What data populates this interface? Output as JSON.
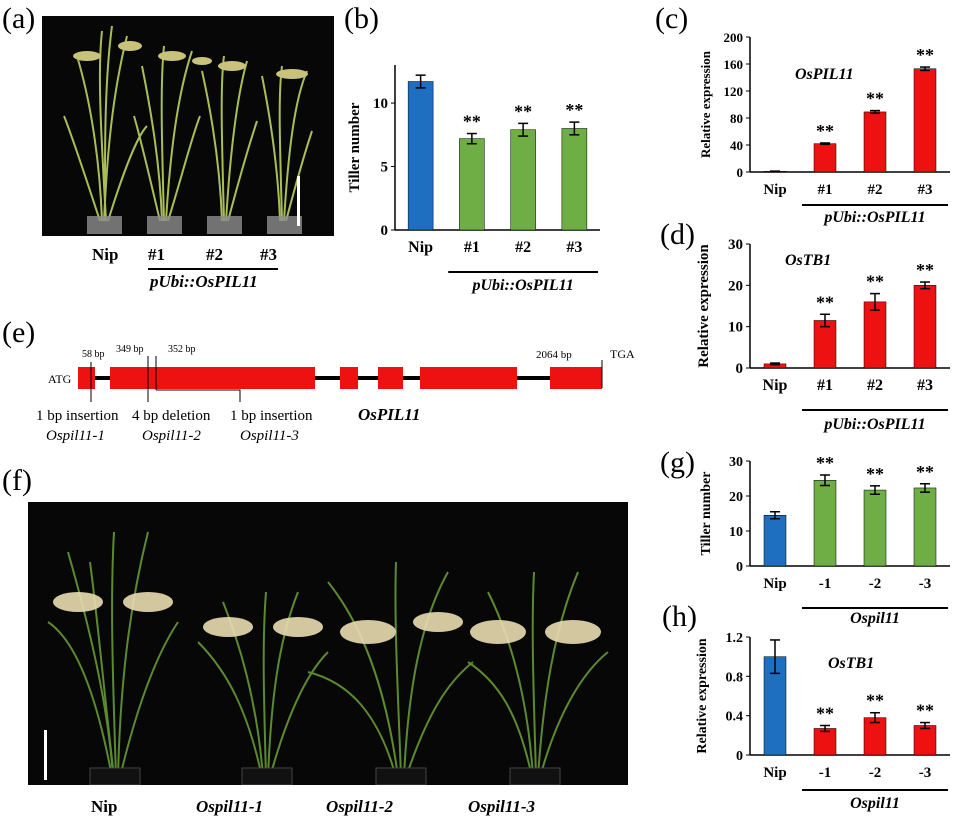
{
  "colors": {
    "blue": "#1f6fc1",
    "green": "#6fae45",
    "red": "#ee1111",
    "black": "#000000",
    "photo_bg": "#070707"
  },
  "panel_labels": [
    "(a)",
    "(b)",
    "(c)",
    "(d)",
    "(e)",
    "(f)",
    "(g)",
    "(h)"
  ],
  "panel_a": {
    "labels": [
      "Nip",
      "#1",
      "#2",
      "#3"
    ],
    "group_label": "pUbi::OsPIL11"
  },
  "panel_e": {
    "gene": "OsPIL11",
    "start": "ATG",
    "stop": "TGA",
    "positions": [
      "58 bp",
      "349 bp",
      "352 bp",
      "2064 bp"
    ],
    "mutations": [
      {
        "type": "1 bp insertion",
        "line": "Ospil11-1"
      },
      {
        "type": "4 bp deletion",
        "line": "Ospil11-2"
      },
      {
        "type": "1 bp insertion",
        "line": "Ospil11-3"
      }
    ]
  },
  "panel_f": {
    "labels": [
      "Nip",
      "Ospil11-1",
      "Ospil11-2",
      "Ospil11-3"
    ]
  },
  "chart_data": [
    {
      "panel": "b",
      "type": "bar",
      "categories": [
        "Nip",
        "#1",
        "#2",
        "#3"
      ],
      "values": [
        11.7,
        7.2,
        7.9,
        8.0
      ],
      "errors": [
        0.5,
        0.4,
        0.5,
        0.5
      ],
      "significance": [
        "",
        "**",
        "**",
        "**"
      ],
      "colors": [
        "blue",
        "green",
        "green",
        "green"
      ],
      "ylabel": "Tiller number",
      "title": "",
      "ylim": [
        0,
        13
      ],
      "yticks": [
        0,
        5,
        10
      ],
      "group_label": "pUbi::OsPIL11"
    },
    {
      "panel": "c",
      "type": "bar",
      "categories": [
        "Nip",
        "#1",
        "#2",
        "#3"
      ],
      "values": [
        1,
        42,
        89,
        153
      ],
      "errors": [
        0.3,
        1.0,
        2.0,
        2.5
      ],
      "significance": [
        "",
        "**",
        "**",
        "**"
      ],
      "colors": [
        "red",
        "red",
        "red",
        "red"
      ],
      "ylabel": "Relative expression",
      "title": "OsPIL11",
      "ylim": [
        0,
        200
      ],
      "yticks": [
        0,
        40,
        80,
        120,
        160,
        200
      ],
      "group_label": "pUbi::OsPIL11"
    },
    {
      "panel": "d",
      "type": "bar",
      "categories": [
        "Nip",
        "#1",
        "#2",
        "#3"
      ],
      "values": [
        1,
        11.5,
        16,
        20
      ],
      "errors": [
        0.2,
        1.5,
        2.0,
        0.8
      ],
      "significance": [
        "",
        "**",
        "**",
        "**"
      ],
      "colors": [
        "red",
        "red",
        "red",
        "red"
      ],
      "ylabel": "Relative expression",
      "title": "OsTB1",
      "ylim": [
        0,
        30
      ],
      "yticks": [
        0,
        10,
        20,
        30
      ],
      "group_label": "pUbi::OsPIL11"
    },
    {
      "panel": "g",
      "type": "bar",
      "categories": [
        "Nip",
        "-1",
        "-2",
        "-3"
      ],
      "values": [
        14.5,
        24.5,
        21.7,
        22.3
      ],
      "errors": [
        1.0,
        1.5,
        1.2,
        1.2
      ],
      "significance": [
        "",
        "**",
        "**",
        "**"
      ],
      "colors": [
        "blue",
        "green",
        "green",
        "green"
      ],
      "ylabel": "Tiller number",
      "title": "",
      "ylim": [
        0,
        30
      ],
      "yticks": [
        0,
        10,
        20,
        30
      ],
      "group_label": "Ospil11"
    },
    {
      "panel": "h",
      "type": "bar",
      "categories": [
        "Nip",
        "-1",
        "-2",
        "-3"
      ],
      "values": [
        1.0,
        0.27,
        0.38,
        0.3
      ],
      "errors": [
        0.17,
        0.03,
        0.05,
        0.03
      ],
      "significance": [
        "",
        "**",
        "**",
        "**"
      ],
      "colors": [
        "blue",
        "red",
        "red",
        "red"
      ],
      "ylabel": "Relative expression",
      "title": "OsTB1",
      "ylim": [
        0,
        1.2
      ],
      "yticks": [
        0,
        0.4,
        0.8,
        1.2
      ],
      "group_label": "Ospil11"
    }
  ]
}
